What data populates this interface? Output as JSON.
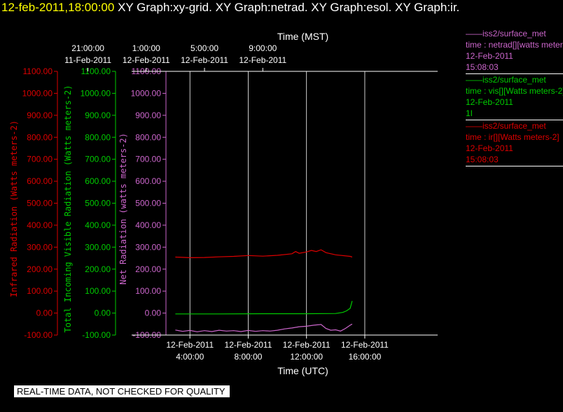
{
  "header": {
    "datetime": "12-feb-2011,18:00:00",
    "graphs": "XY Graph:xy-grid.  XY Graph:netrad.  XY Graph:esol.  XY Graph:ir."
  },
  "legend": [
    {
      "source": "iss2/surface_met",
      "label": "time : netrad[][watts meters-2]",
      "date": "12-Feb-2011",
      "time": "15:08:03",
      "color": "#cc66cc"
    },
    {
      "source": "iss2/surface_met",
      "label": "time : vis[][Watts meters-2]",
      "date": "12-Feb-2011",
      "time": "1I",
      "color": "#00cc00"
    },
    {
      "source": "iss2/surface_met",
      "label": "time : ir[][Watts meters-2]",
      "date": "12-Feb-2011",
      "time": "15:08:03",
      "color": "#dd0000"
    }
  ],
  "notice": "REAL-TIME DATA, NOT CHECKED FOR QUALITY",
  "colors": {
    "ir": "#dd0000",
    "vis": "#00cc00",
    "net": "#cc66cc",
    "grid": "#ffffff",
    "axis": "#ffffff",
    "background": "#000000"
  },
  "chart_data": {
    "type": "line",
    "xlabel": "Time (UTC)",
    "x2label": "Time (MST)",
    "xlim": [
      "12-Feb-2011 00:00",
      "12-Feb-2011 21:00"
    ],
    "x_ticks": [
      {
        "time": "12-Feb-2011 04:00",
        "label_date": "12-Feb-2011",
        "label_time": "4:00:00"
      },
      {
        "time": "12-Feb-2011 08:00",
        "label_date": "12-Feb-2011",
        "label_time": "8:00:00"
      },
      {
        "time": "12-Feb-2011 12:00",
        "label_date": "12-Feb-2011",
        "label_time": "12:00:00"
      },
      {
        "time": "12-Feb-2011 16:00",
        "label_date": "12-Feb-2011",
        "label_time": "16:00:00"
      }
    ],
    "x2_ticks": [
      {
        "time": "11-Feb-2011 21:00",
        "label_time": "21:00:00",
        "label_date": "11-Feb-2011"
      },
      {
        "time": "12-Feb-2011 01:00",
        "label_time": "1:00:00",
        "label_date": "12-Feb-2011"
      },
      {
        "time": "12-Feb-2011 05:00",
        "label_time": "5:00:00",
        "label_date": "12-Feb-2011"
      },
      {
        "time": "12-Feb-2011 09:00",
        "label_time": "9:00:00",
        "label_date": "12-Feb-2011"
      }
    ],
    "ylim": [
      -100,
      1100
    ],
    "y_ticks": [
      "-100.00",
      "0.00",
      "100.00",
      "200.00",
      "300.00",
      "400.00",
      "500.00",
      "600.00",
      "700.00",
      "800.00",
      "900.00",
      "1000.00",
      "1100.00"
    ],
    "y_axes": [
      {
        "key": "ir",
        "label": "Infrared Radiation (Watts meters-2)"
      },
      {
        "key": "vis",
        "label": "Total Incoming Visible Radiation (Watts meters-2)"
      },
      {
        "key": "net",
        "label": "Net Radiation (watts meters-2)"
      }
    ],
    "grid": true,
    "series": [
      {
        "name": "ir",
        "points": [
          [
            "12-Feb-2011 03:00",
            255
          ],
          [
            "12-Feb-2011 04:00",
            252
          ],
          [
            "12-Feb-2011 05:00",
            253
          ],
          [
            "12-Feb-2011 06:00",
            256
          ],
          [
            "12-Feb-2011 07:00",
            258
          ],
          [
            "12-Feb-2011 08:00",
            262
          ],
          [
            "12-Feb-2011 09:00",
            259
          ],
          [
            "12-Feb-2011 10:00",
            263
          ],
          [
            "12-Feb-2011 11:00",
            270
          ],
          [
            "12-Feb-2011 11:15",
            280
          ],
          [
            "12-Feb-2011 11:30",
            272
          ],
          [
            "12-Feb-2011 12:00",
            278
          ],
          [
            "12-Feb-2011 12:20",
            285
          ],
          [
            "12-Feb-2011 12:40",
            280
          ],
          [
            "12-Feb-2011 13:00",
            288
          ],
          [
            "12-Feb-2011 13:20",
            275
          ],
          [
            "12-Feb-2011 14:00",
            265
          ],
          [
            "12-Feb-2011 15:00",
            258
          ],
          [
            "12-Feb-2011 15:08",
            255
          ]
        ]
      },
      {
        "name": "vis",
        "points": [
          [
            "12-Feb-2011 03:00",
            -4
          ],
          [
            "12-Feb-2011 06:00",
            -4
          ],
          [
            "12-Feb-2011 09:00",
            -3
          ],
          [
            "12-Feb-2011 12:00",
            -3
          ],
          [
            "12-Feb-2011 14:00",
            -2
          ],
          [
            "12-Feb-2011 14:30",
            3
          ],
          [
            "12-Feb-2011 14:45",
            10
          ],
          [
            "12-Feb-2011 15:00",
            22
          ],
          [
            "12-Feb-2011 15:08",
            55
          ]
        ]
      },
      {
        "name": "net",
        "points": [
          [
            "12-Feb-2011 03:00",
            -77
          ],
          [
            "12-Feb-2011 03:30",
            -83
          ],
          [
            "12-Feb-2011 04:00",
            -79
          ],
          [
            "12-Feb-2011 04:30",
            -85
          ],
          [
            "12-Feb-2011 05:00",
            -80
          ],
          [
            "12-Feb-2011 05:30",
            -84
          ],
          [
            "12-Feb-2011 06:00",
            -78
          ],
          [
            "12-Feb-2011 06:30",
            -82
          ],
          [
            "12-Feb-2011 07:00",
            -80
          ],
          [
            "12-Feb-2011 07:30",
            -84
          ],
          [
            "12-Feb-2011 08:00",
            -79
          ],
          [
            "12-Feb-2011 08:30",
            -83
          ],
          [
            "12-Feb-2011 09:00",
            -80
          ],
          [
            "12-Feb-2011 09:30",
            -82
          ],
          [
            "12-Feb-2011 10:00",
            -78
          ],
          [
            "12-Feb-2011 10:30",
            -72
          ],
          [
            "12-Feb-2011 11:00",
            -68
          ],
          [
            "12-Feb-2011 11:30",
            -62
          ],
          [
            "12-Feb-2011 12:00",
            -60
          ],
          [
            "12-Feb-2011 12:30",
            -55
          ],
          [
            "12-Feb-2011 13:00",
            -52
          ],
          [
            "12-Feb-2011 13:20",
            -70
          ],
          [
            "12-Feb-2011 13:40",
            -78
          ],
          [
            "12-Feb-2011 14:00",
            -76
          ],
          [
            "12-Feb-2011 14:20",
            -82
          ],
          [
            "12-Feb-2011 14:40",
            -70
          ],
          [
            "12-Feb-2011 15:00",
            -55
          ],
          [
            "12-Feb-2011 15:08",
            -50
          ]
        ]
      }
    ]
  }
}
